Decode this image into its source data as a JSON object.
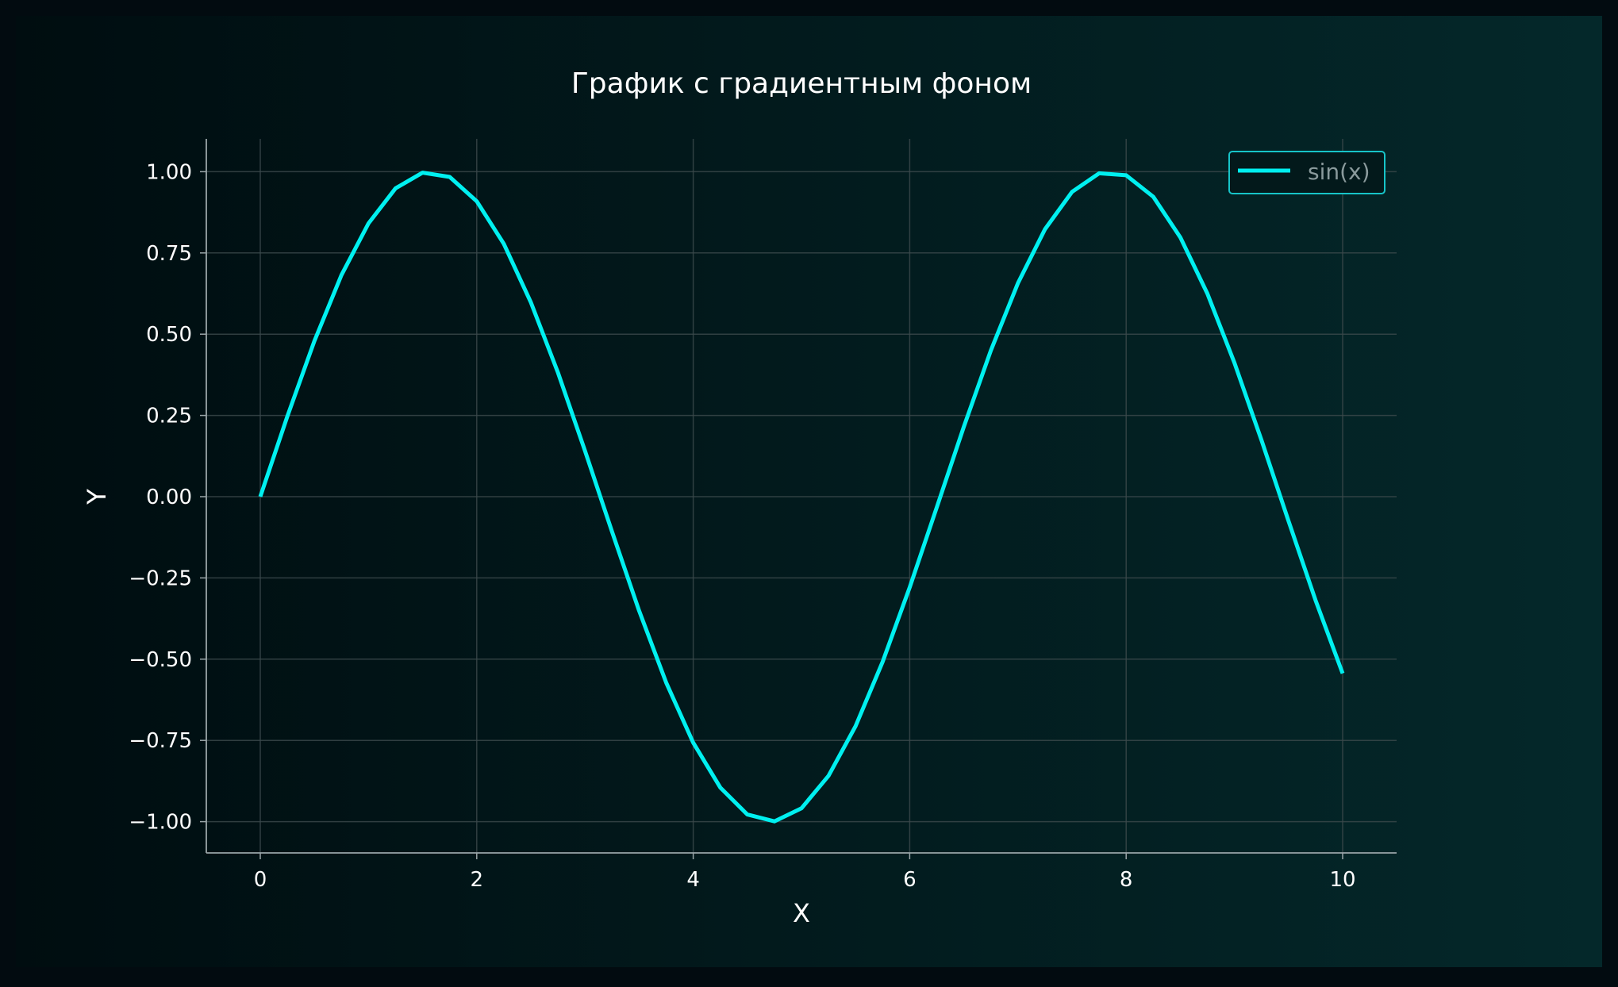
{
  "chart_data": {
    "type": "line",
    "title": "График с градиентным фоном",
    "xlabel": "X",
    "ylabel": "Y",
    "xlim": [
      -0.5,
      10.5
    ],
    "ylim": [
      -1.1,
      1.1
    ],
    "grid": true,
    "legend_position": "top-right",
    "x_ticks": [
      0,
      2,
      4,
      6,
      8,
      10
    ],
    "x_tick_labels": [
      "0",
      "2",
      "4",
      "6",
      "8",
      "10"
    ],
    "y_ticks": [
      1.0,
      0.75,
      0.5,
      0.25,
      0.0,
      -0.25,
      -0.5,
      -0.75,
      -1.0
    ],
    "y_tick_labels": [
      "1.00",
      "0.75",
      "0.50",
      "0.25",
      "0.00",
      "−0.25",
      "−0.50",
      "−0.75",
      "−1.00"
    ],
    "series": [
      {
        "name": "sin(x)",
        "color": "#00f0f0",
        "x": [
          0.0,
          0.25,
          0.5,
          0.75,
          1.0,
          1.25,
          1.5,
          1.75,
          2.0,
          2.25,
          2.5,
          2.75,
          3.0,
          3.25,
          3.5,
          3.75,
          4.0,
          4.25,
          4.5,
          4.75,
          5.0,
          5.25,
          5.5,
          5.75,
          6.0,
          6.25,
          6.5,
          6.75,
          7.0,
          7.25,
          7.5,
          7.75,
          8.0,
          8.25,
          8.5,
          8.75,
          9.0,
          9.25,
          9.5,
          9.75,
          10.0
        ],
        "y": [
          0.0,
          0.247,
          0.479,
          0.682,
          0.841,
          0.949,
          0.997,
          0.984,
          0.909,
          0.778,
          0.598,
          0.382,
          0.141,
          -0.108,
          -0.351,
          -0.572,
          -0.757,
          -0.895,
          -0.978,
          -0.999,
          -0.959,
          -0.859,
          -0.706,
          -0.508,
          -0.279,
          -0.033,
          0.215,
          0.45,
          0.657,
          0.823,
          0.938,
          0.995,
          0.989,
          0.923,
          0.798,
          0.625,
          0.412,
          0.174,
          -0.075,
          -0.319,
          -0.544
        ]
      }
    ]
  },
  "colors": {
    "background_left": "#000d10",
    "background_right": "#04282a",
    "frame": "#020b10",
    "line": "#00f0f0",
    "text": "#ffffff",
    "legend_text": "#8a9a9c",
    "grid": "#3c4a4c",
    "axis": "#9aa5a8"
  }
}
